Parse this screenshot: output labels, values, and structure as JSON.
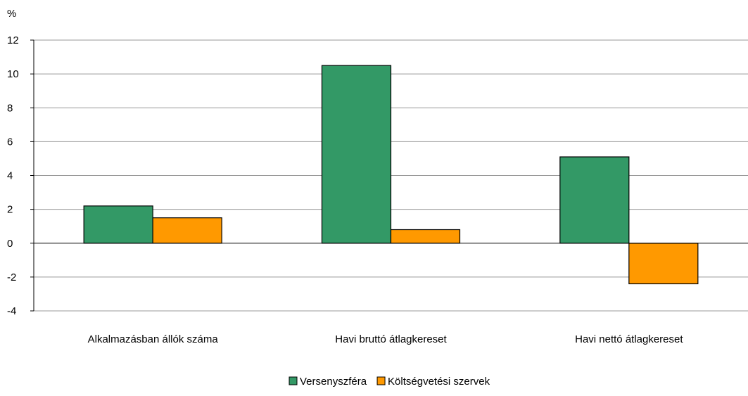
{
  "chart_data": {
    "type": "bar",
    "ylabel": "%",
    "ylim": [
      -4,
      12
    ],
    "yticks": [
      12,
      10,
      8,
      6,
      4,
      2,
      0,
      -2,
      -4
    ],
    "grid": true,
    "legend_position": "bottom",
    "categories": [
      "Alkalmazásban állók száma",
      "Havi bruttó átlagkereset",
      "Havi nettó átlagkereset"
    ],
    "series": [
      {
        "name": "Versenyszféra",
        "color": "#339966",
        "values": [
          2.2,
          10.5,
          5.1
        ]
      },
      {
        "name": "Költségvetési szervek",
        "color": "#FF9900",
        "values": [
          1.5,
          0.8,
          -2.4
        ]
      }
    ]
  }
}
